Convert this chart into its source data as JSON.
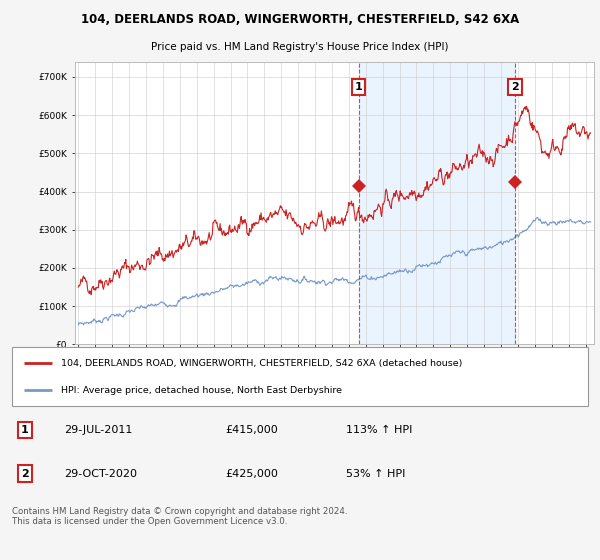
{
  "title1": "104, DEERLANDS ROAD, WINGERWORTH, CHESTERFIELD, S42 6XA",
  "title2": "Price paid vs. HM Land Registry's House Price Index (HPI)",
  "bg_color": "#f5f5f5",
  "plot_bg": "#ffffff",
  "shade_color": "#ddeeff",
  "red_color": "#cc2222",
  "blue_color": "#7799cc",
  "sale1_x": 2011.58,
  "sale1_y": 415000,
  "sale1_label": "1",
  "sale1_date": "29-JUL-2011",
  "sale1_price": "£415,000",
  "sale1_hpi": "113% ↑ HPI",
  "sale2_x": 2020.83,
  "sale2_y": 425000,
  "sale2_label": "2",
  "sale2_date": "29-OCT-2020",
  "sale2_price": "£425,000",
  "sale2_hpi": "53% ↑ HPI",
  "legend_line1": "104, DEERLANDS ROAD, WINGERWORTH, CHESTERFIELD, S42 6XA (detached house)",
  "legend_line2": "HPI: Average price, detached house, North East Derbyshire",
  "footnote": "Contains HM Land Registry data © Crown copyright and database right 2024.\nThis data is licensed under the Open Government Licence v3.0.",
  "yticks": [
    0,
    100000,
    200000,
    300000,
    400000,
    500000,
    600000,
    700000
  ],
  "ylim": [
    0,
    740000
  ],
  "xlim_start": 1994.8,
  "xlim_end": 2025.5
}
